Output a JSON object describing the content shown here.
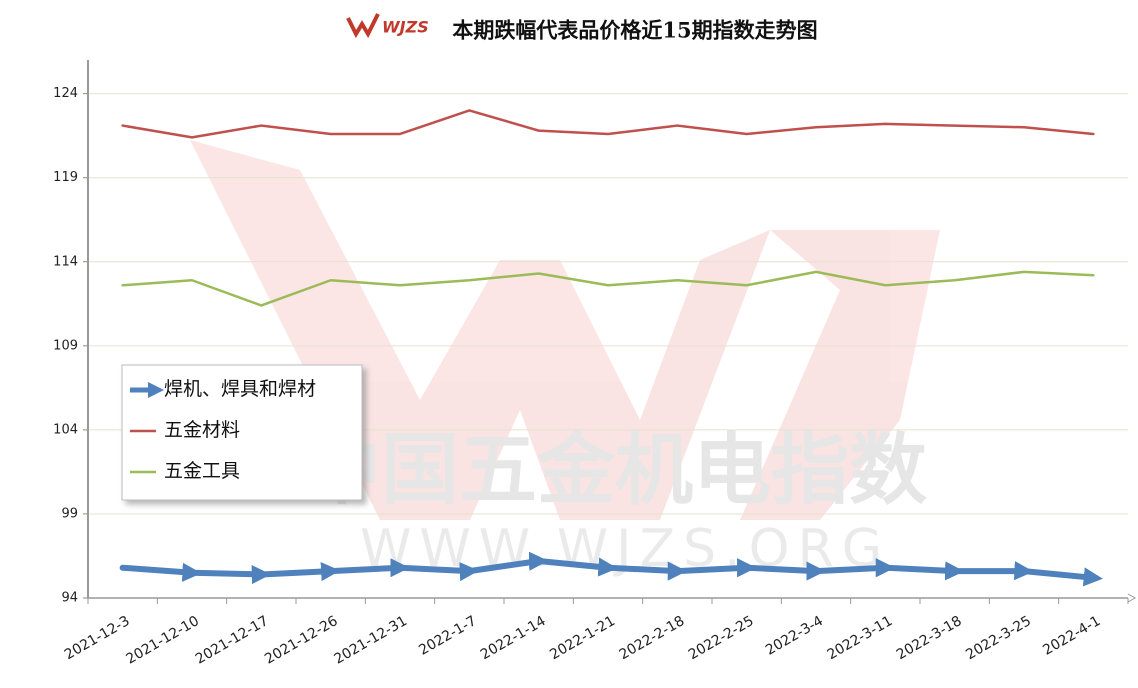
{
  "chart_data": {
    "type": "line",
    "title": "本期跌幅代表品价格近15期指数走势图",
    "logo": "WJZS",
    "watermark": [
      "中国五金机电指数",
      "WWW.WJZS.ORG"
    ],
    "categories": [
      "2021-12-3",
      "2021-12-10",
      "2021-12-17",
      "2021-12-26",
      "2021-12-31",
      "2022-1-7",
      "2022-1-14",
      "2022-1-21",
      "2022-2-18",
      "2022-2-25",
      "2022-3-4",
      "2022-3-11",
      "2022-3-18",
      "2022-3-25",
      "2022-4-1"
    ],
    "series": [
      {
        "name": "焊机、焊具和焊材",
        "color": "#4f81bd",
        "values": [
          95.8,
          95.5,
          95.4,
          95.6,
          95.8,
          95.6,
          96.2,
          95.8,
          95.6,
          95.8,
          95.6,
          95.8,
          95.6,
          95.6,
          95.2
        ]
      },
      {
        "name": "五金材料",
        "color": "#c0504d",
        "values": [
          122.1,
          121.4,
          122.1,
          121.6,
          121.6,
          123.0,
          121.8,
          121.6,
          122.1,
          121.6,
          122.0,
          122.2,
          122.1,
          122.0,
          121.6
        ]
      },
      {
        "name": "五金工具",
        "color": "#9bbb59",
        "values": [
          112.6,
          112.9,
          111.4,
          112.9,
          112.6,
          112.9,
          113.3,
          112.6,
          112.9,
          112.6,
          113.4,
          112.6,
          112.9,
          113.4,
          113.2
        ]
      }
    ],
    "ylim": [
      94,
      126
    ],
    "yticks": [
      94,
      99,
      104,
      109,
      114,
      119,
      124
    ],
    "grid": true,
    "legend": "left"
  }
}
